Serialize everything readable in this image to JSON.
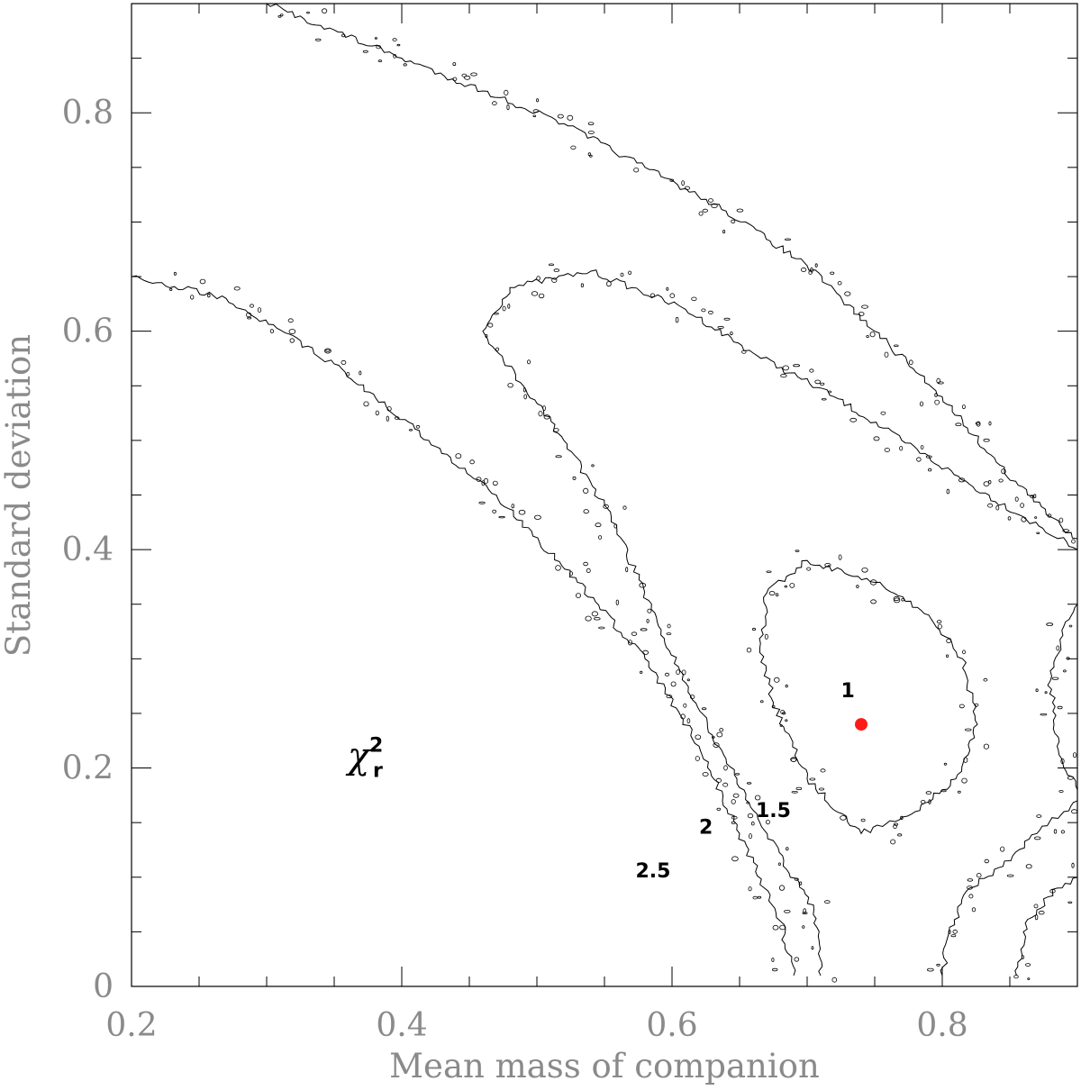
{
  "chart_data": {
    "type": "contour",
    "xlabel": "Mean mass of companion",
    "ylabel": "Standard deviation",
    "xlim": [
      0.2,
      0.9
    ],
    "ylim": [
      0,
      0.9
    ],
    "x_ticks": [
      {
        "value": 0.2,
        "label": "0.2"
      },
      {
        "value": 0.4,
        "label": "0.4"
      },
      {
        "value": 0.6,
        "label": "0.6"
      },
      {
        "value": 0.8,
        "label": "0.8"
      }
    ],
    "y_ticks": [
      {
        "value": 0,
        "label": "0"
      },
      {
        "value": 0.2,
        "label": "0.2"
      },
      {
        "value": 0.4,
        "label": "0.4"
      },
      {
        "value": 0.6,
        "label": "0.6"
      },
      {
        "value": 0.8,
        "label": "0.8"
      }
    ],
    "minor_tick_step": 0.05,
    "stat_label": {
      "base": "χ",
      "sup": "2",
      "sub": "r",
      "x": 0.36,
      "y": 0.2
    },
    "best_fit": {
      "x": 0.74,
      "y": 0.24,
      "color": "#ff1a1a"
    },
    "contour_levels": [
      {
        "level": 1,
        "label": "1",
        "label_pos": [
          0.725,
          0.265
        ],
        "closed": true,
        "points": [
          [
            0.74,
            0.14
          ],
          [
            0.78,
            0.16
          ],
          [
            0.81,
            0.19
          ],
          [
            0.826,
            0.24
          ],
          [
            0.815,
            0.3
          ],
          [
            0.79,
            0.34
          ],
          [
            0.75,
            0.37
          ],
          [
            0.7,
            0.39
          ],
          [
            0.67,
            0.36
          ],
          [
            0.665,
            0.31
          ],
          [
            0.675,
            0.26
          ],
          [
            0.7,
            0.19
          ],
          [
            0.74,
            0.14
          ]
        ]
      },
      {
        "level": 1.5,
        "label": "1.5",
        "label_pos": [
          0.662,
          0.155
        ],
        "closed": false,
        "points": [
          [
            0.71,
            0.01
          ],
          [
            0.705,
            0.07
          ],
          [
            0.665,
            0.15
          ],
          [
            0.63,
            0.23
          ],
          [
            0.59,
            0.33
          ],
          [
            0.555,
            0.43
          ],
          [
            0.52,
            0.5
          ],
          [
            0.49,
            0.55
          ],
          [
            0.46,
            0.6
          ],
          [
            0.48,
            0.64
          ],
          [
            0.54,
            0.655
          ],
          [
            0.61,
            0.62
          ],
          [
            0.66,
            0.58
          ],
          [
            0.72,
            0.54
          ],
          [
            0.77,
            0.5
          ],
          [
            0.82,
            0.46
          ],
          [
            0.86,
            0.43
          ],
          [
            0.9,
            0.4
          ]
        ]
      },
      {
        "level": 2,
        "label": "2",
        "label_pos": [
          0.62,
          0.14
        ],
        "closed": false,
        "points": [
          [
            0.69,
            0.01
          ],
          [
            0.68,
            0.06
          ],
          [
            0.65,
            0.14
          ],
          [
            0.62,
            0.22
          ],
          [
            0.58,
            0.3
          ],
          [
            0.53,
            0.37
          ],
          [
            0.47,
            0.45
          ],
          [
            0.42,
            0.5
          ],
          [
            0.35,
            0.57
          ],
          [
            0.27,
            0.63
          ],
          [
            0.2,
            0.65
          ]
        ]
      },
      {
        "level": 2.5,
        "label": "2.5",
        "label_pos": [
          0.573,
          0.1
        ],
        "closed": false,
        "points": [
          [
            0.3,
            0.9
          ],
          [
            0.34,
            0.88
          ],
          [
            0.4,
            0.85
          ],
          [
            0.46,
            0.82
          ],
          [
            0.52,
            0.79
          ],
          [
            0.58,
            0.75
          ],
          [
            0.64,
            0.71
          ],
          [
            0.7,
            0.66
          ],
          [
            0.75,
            0.6
          ],
          [
            0.8,
            0.54
          ],
          [
            0.84,
            0.48
          ],
          [
            0.88,
            0.43
          ],
          [
            0.9,
            0.41
          ]
        ]
      },
      {
        "level": 2,
        "label": "",
        "label_pos": null,
        "closed": false,
        "points": [
          [
            0.8,
            0.01
          ],
          [
            0.805,
            0.05
          ],
          [
            0.82,
            0.09
          ],
          [
            0.845,
            0.11
          ],
          [
            0.87,
            0.14
          ],
          [
            0.89,
            0.16
          ],
          [
            0.9,
            0.17
          ]
        ]
      },
      {
        "level": 2.5,
        "label": "",
        "label_pos": null,
        "closed": false,
        "points": [
          [
            0.855,
            0.01
          ],
          [
            0.86,
            0.05
          ],
          [
            0.87,
            0.07
          ],
          [
            0.885,
            0.09
          ],
          [
            0.9,
            0.1
          ]
        ]
      },
      {
        "level": 1.5,
        "label": "",
        "label_pos": null,
        "closed": false,
        "points": [
          [
            0.9,
            0.18
          ],
          [
            0.885,
            0.22
          ],
          [
            0.88,
            0.28
          ],
          [
            0.89,
            0.33
          ],
          [
            0.9,
            0.35
          ]
        ]
      }
    ]
  }
}
